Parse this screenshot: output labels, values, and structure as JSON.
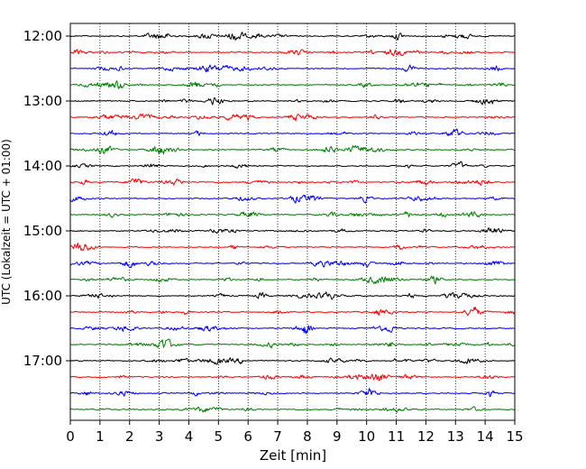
{
  "chart_data": {
    "type": "line",
    "title": "",
    "xlabel": "Zeit  [min]",
    "ylabel": "UTC (Lokalzeit = UTC + 01:00)",
    "xlim": [
      0,
      15
    ],
    "x_ticks": [
      0,
      1,
      2,
      3,
      4,
      5,
      6,
      7,
      8,
      9,
      10,
      11,
      12,
      13,
      14,
      15
    ],
    "y_ticks": [
      "12:00",
      "13:00",
      "14:00",
      "15:00",
      "16:00",
      "17:00"
    ],
    "grid": "vertical-dotted",
    "trace_minutes": 15,
    "trace_start_times": [
      "12:00",
      "12:15",
      "12:30",
      "12:45",
      "13:00",
      "13:15",
      "13:30",
      "13:45",
      "14:00",
      "14:15",
      "14:30",
      "14:45",
      "15:00",
      "15:15",
      "15:30",
      "15:45",
      "16:00",
      "16:15",
      "16:30",
      "16:45",
      "17:00",
      "17:15",
      "17:30",
      "17:45"
    ],
    "colors": [
      "#000000",
      "#ff0000",
      "#0000ff",
      "#008000"
    ]
  }
}
